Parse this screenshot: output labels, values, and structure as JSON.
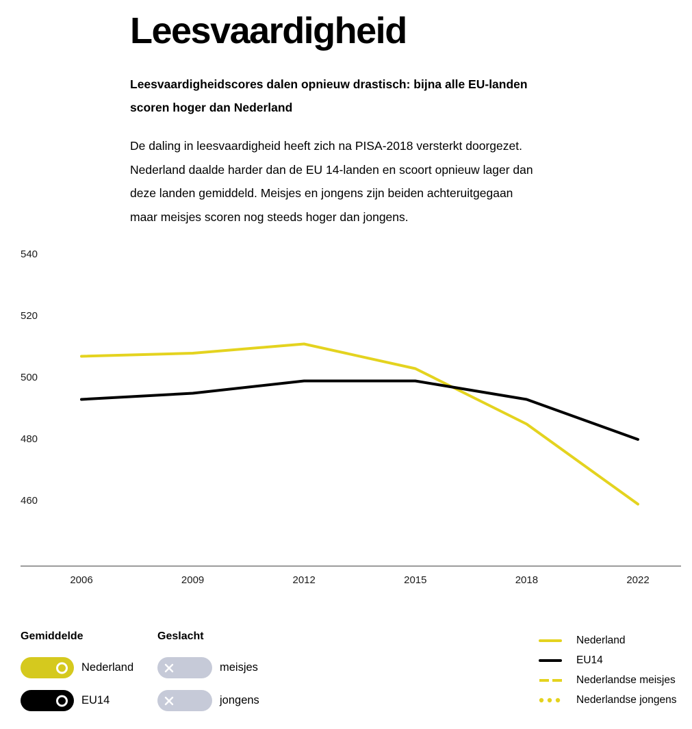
{
  "header": {
    "title": "Leesvaardigheid",
    "subtitle_lines": [
      "Leesvaardigheidscores dalen opnieuw drastisch: bijna alle EU-landen",
      "scoren hoger dan Nederland"
    ],
    "paragraph_lines": [
      "De daling in leesvaardigheid heeft zich na PISA-2018 versterkt doorgezet.",
      "Nederland daalde harder dan de EU 14-landen en scoort opnieuw lager dan",
      "deze landen gemiddeld. Meisjes en jongens zijn beiden achteruitgegaan",
      "maar meisjes scoren nog steeds hoger dan jongens."
    ]
  },
  "chart_data": {
    "type": "line",
    "title": "Leesvaardigheid",
    "categories": [
      "2006",
      "2009",
      "2012",
      "2015",
      "2018",
      "2022"
    ],
    "series": [
      {
        "name": "Nederland",
        "color": "#e4d31f",
        "values": [
          507,
          508,
          511,
          503,
          485,
          459
        ]
      },
      {
        "name": "EU14",
        "color": "#000000",
        "values": [
          493,
          495,
          499,
          499,
          493,
          480
        ]
      }
    ],
    "yticks": [
      540,
      520,
      500,
      480,
      460
    ],
    "ylim": [
      450,
      545
    ],
    "xlabel": "",
    "ylabel": "",
    "grid": false,
    "legend_position": "bottom-right",
    "axis_color": "#9b9b9b"
  },
  "controls": {
    "gemiddelde": {
      "title": "Gemiddelde",
      "toggles": [
        {
          "label": "Nederland",
          "state": "on",
          "color": "#d5c91e"
        },
        {
          "label": "EU14",
          "state": "on",
          "color": "#000000"
        }
      ]
    },
    "geslacht": {
      "title": "Geslacht",
      "toggles": [
        {
          "label": "meisjes",
          "state": "off",
          "color": "#c6cad8"
        },
        {
          "label": "jongens",
          "state": "off",
          "color": "#c6cad8"
        }
      ]
    }
  },
  "legend": {
    "items": [
      {
        "label": "Nederland",
        "style": "solid",
        "color": "#e4d31f"
      },
      {
        "label": "EU14",
        "style": "solid",
        "color": "#000000"
      },
      {
        "label": "Nederlandse meisjes",
        "style": "dashed",
        "color": "#e4d31f"
      },
      {
        "label": "Nederlandse jongens",
        "style": "dotted",
        "color": "#e4d31f"
      }
    ]
  }
}
